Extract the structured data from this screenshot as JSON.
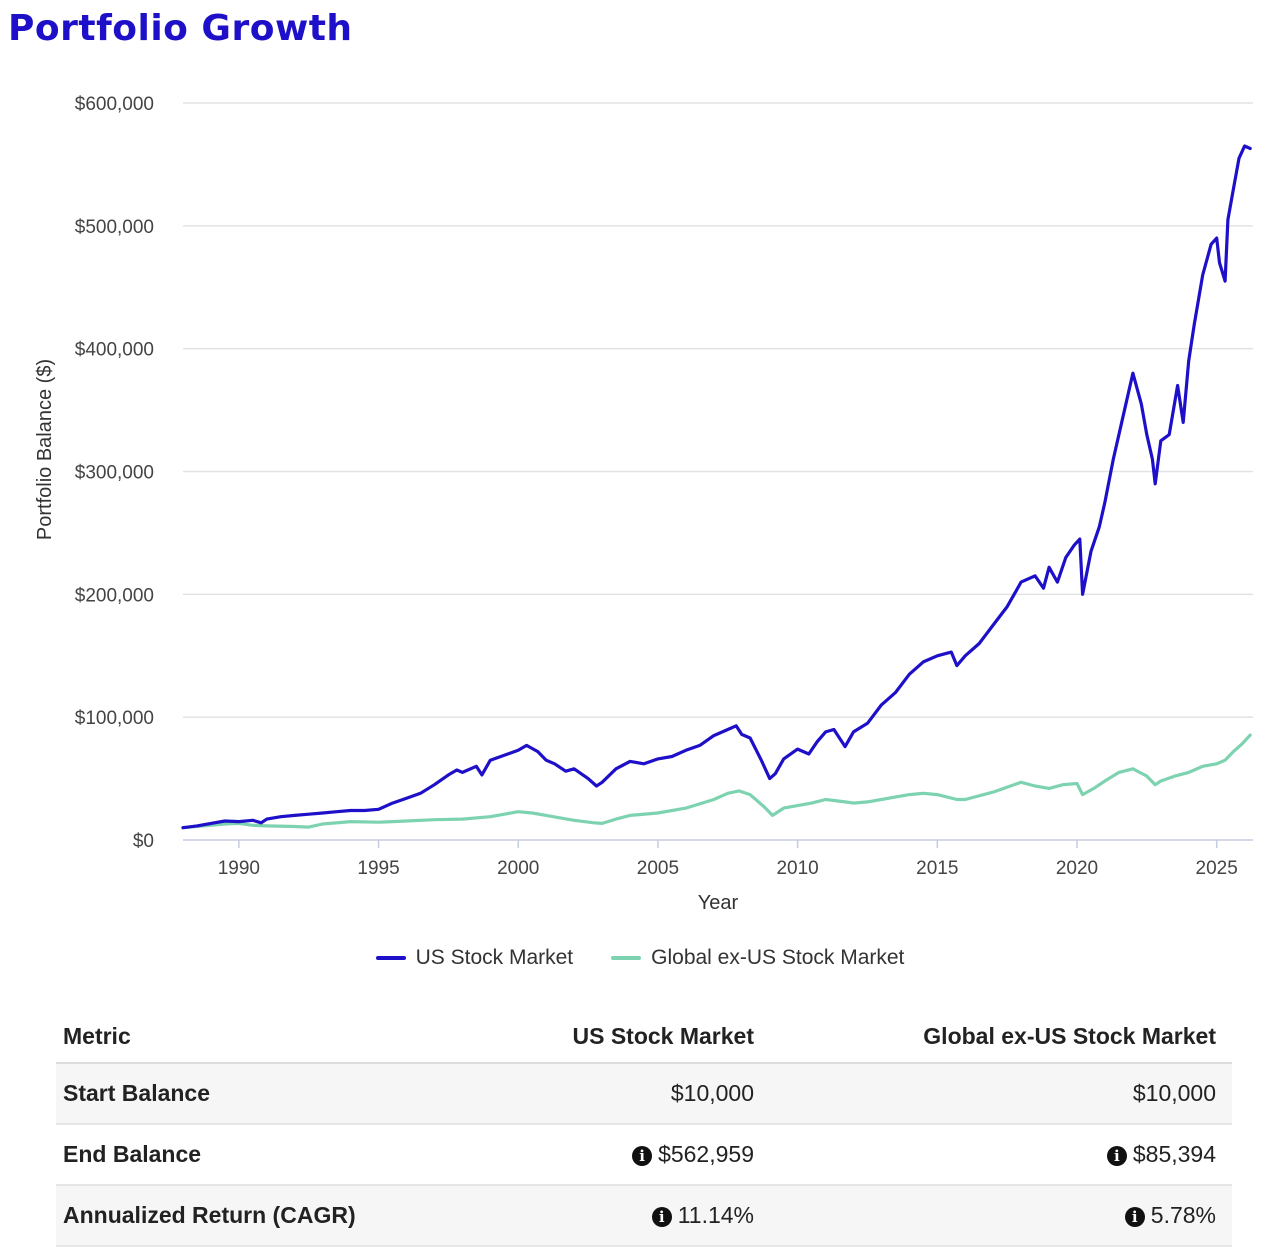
{
  "page": {
    "title": "Portfolio Growth"
  },
  "chart_data": {
    "type": "line",
    "xlabel": "Year",
    "ylabel": "Portfolio Balance ($)",
    "xlim": [
      1988,
      2026.3
    ],
    "ylim": [
      0,
      600000
    ],
    "x_ticks": [
      1990,
      1995,
      2000,
      2005,
      2010,
      2015,
      2020,
      2025
    ],
    "y_ticks": [
      0,
      100000,
      200000,
      300000,
      400000,
      500000,
      600000
    ],
    "y_tick_labels": [
      "$0",
      "$100,000",
      "$200,000",
      "$300,000",
      "$400,000",
      "$500,000",
      "$600,000"
    ],
    "grid": true,
    "legend": "bottom",
    "series": [
      {
        "name": "US Stock Market",
        "color": "#1e10c8",
        "x": [
          1988.0,
          1988.5,
          1989.0,
          1989.5,
          1990.0,
          1990.5,
          1990.8,
          1991.0,
          1991.5,
          1992.0,
          1992.5,
          1993.0,
          1993.5,
          1994.0,
          1994.5,
          1995.0,
          1995.5,
          1996.0,
          1996.5,
          1997.0,
          1997.5,
          1997.8,
          1998.0,
          1998.5,
          1998.7,
          1999.0,
          1999.5,
          2000.0,
          2000.3,
          2000.7,
          2001.0,
          2001.3,
          2001.7,
          2002.0,
          2002.5,
          2002.8,
          2003.0,
          2003.5,
          2004.0,
          2004.5,
          2005.0,
          2005.5,
          2006.0,
          2006.5,
          2007.0,
          2007.5,
          2007.8,
          2008.0,
          2008.3,
          2008.7,
          2009.0,
          2009.2,
          2009.5,
          2010.0,
          2010.4,
          2010.7,
          2011.0,
          2011.3,
          2011.7,
          2012.0,
          2012.5,
          2013.0,
          2013.5,
          2014.0,
          2014.5,
          2015.0,
          2015.5,
          2015.7,
          2016.0,
          2016.5,
          2017.0,
          2017.5,
          2018.0,
          2018.2,
          2018.5,
          2018.8,
          2019.0,
          2019.3,
          2019.6,
          2019.9,
          2020.1,
          2020.2,
          2020.5,
          2020.8,
          2021.0,
          2021.3,
          2021.6,
          2021.9,
          2022.0,
          2022.3,
          2022.5,
          2022.7,
          2022.8,
          2023.0,
          2023.3,
          2023.6,
          2023.8,
          2024.0,
          2024.2,
          2024.5,
          2024.8,
          2025.0,
          2025.1,
          2025.3,
          2025.4,
          2025.6,
          2025.8,
          2026.0,
          2026.2
        ],
        "y": [
          10000,
          11500,
          13500,
          15500,
          15000,
          16000,
          14000,
          17000,
          19000,
          20000,
          21000,
          22000,
          23000,
          24000,
          24000,
          25000,
          30000,
          34000,
          38000,
          45000,
          53000,
          57000,
          55000,
          60000,
          53000,
          65000,
          69000,
          73000,
          77000,
          72000,
          65000,
          62000,
          56000,
          58000,
          50000,
          44000,
          47000,
          58000,
          64000,
          62000,
          66000,
          68000,
          73000,
          77000,
          85000,
          90000,
          93000,
          86000,
          83000,
          65000,
          50000,
          54000,
          66000,
          74000,
          70000,
          80000,
          88000,
          90000,
          76000,
          88000,
          95000,
          110000,
          120000,
          135000,
          145000,
          150000,
          153000,
          142000,
          150000,
          160000,
          175000,
          190000,
          210000,
          212000,
          215000,
          205000,
          222000,
          210000,
          230000,
          240000,
          245000,
          200000,
          235000,
          255000,
          275000,
          310000,
          340000,
          370000,
          380000,
          355000,
          330000,
          310000,
          290000,
          325000,
          330000,
          370000,
          340000,
          390000,
          420000,
          460000,
          485000,
          490000,
          470000,
          455000,
          505000,
          530000,
          555000,
          565000,
          562959
        ]
      },
      {
        "name": "Global ex-US Stock Market",
        "color": "#7dd3b0",
        "x": [
          1988.0,
          1989.0,
          1989.5,
          1990.0,
          1990.5,
          1991.0,
          1992.0,
          1992.5,
          1993.0,
          1994.0,
          1995.0,
          1996.0,
          1997.0,
          1998.0,
          1999.0,
          2000.0,
          2000.5,
          2001.0,
          2001.5,
          2002.0,
          2002.7,
          2003.0,
          2003.5,
          2004.0,
          2005.0,
          2006.0,
          2007.0,
          2007.5,
          2007.9,
          2008.3,
          2008.8,
          2009.1,
          2009.5,
          2010.0,
          2010.5,
          2011.0,
          2011.7,
          2012.0,
          2012.5,
          2013.0,
          2014.0,
          2014.5,
          2015.0,
          2015.7,
          2016.0,
          2017.0,
          2018.0,
          2018.5,
          2019.0,
          2019.5,
          2020.0,
          2020.2,
          2020.6,
          2021.0,
          2021.5,
          2022.0,
          2022.5,
          2022.8,
          2023.0,
          2023.5,
          2024.0,
          2024.5,
          2025.0,
          2025.3,
          2025.6,
          2025.9,
          2026.2
        ],
        "y": [
          10000,
          12000,
          13000,
          13500,
          12000,
          11500,
          11000,
          10500,
          13000,
          15000,
          14500,
          15500,
          16500,
          17000,
          19000,
          23000,
          22000,
          20000,
          18000,
          16000,
          14000,
          13500,
          17000,
          20000,
          22000,
          26000,
          33000,
          38000,
          40000,
          37000,
          27000,
          20000,
          26000,
          28000,
          30000,
          33000,
          31000,
          30000,
          31000,
          33000,
          37000,
          38000,
          37000,
          33000,
          33000,
          39000,
          47000,
          44000,
          42000,
          45000,
          46000,
          37000,
          42000,
          48000,
          55000,
          58000,
          52000,
          45000,
          48000,
          52000,
          55000,
          60000,
          62000,
          65000,
          72000,
          78000,
          85394
        ]
      }
    ]
  },
  "legend": {
    "us_label": "US Stock Market",
    "global_label": "Global ex-US Stock Market"
  },
  "table": {
    "headers": [
      "Metric",
      "US Stock Market",
      "Global ex-US Stock Market"
    ],
    "rows": [
      {
        "metric": "Start Balance",
        "us": "$10,000",
        "global": "$10,000",
        "info": false
      },
      {
        "metric": "End Balance",
        "us": "$562,959",
        "global": "$85,394",
        "info": true
      },
      {
        "metric": "Annualized Return (CAGR)",
        "us": "11.14%",
        "global": "5.78%",
        "info": true
      }
    ]
  }
}
